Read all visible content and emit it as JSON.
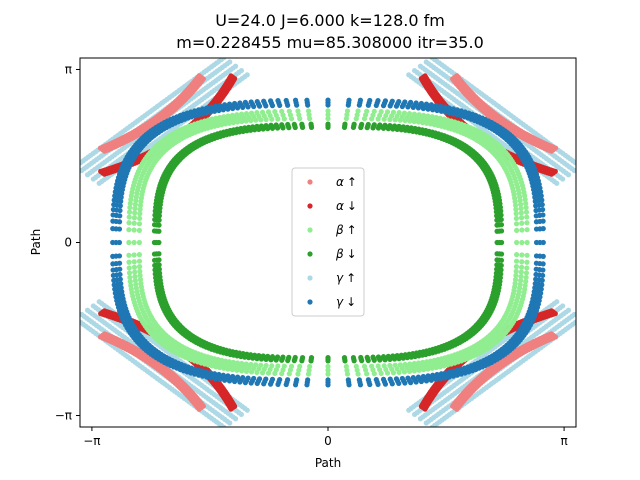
{
  "chart_data": {
    "type": "scatter",
    "title_line1": "U=24.0 J=6.000 k=128.0  fm",
    "title_line2": "m=0.228455 mu=85.308000 itr=35.0",
    "xlabel": "Path",
    "ylabel": "Path",
    "xlim": [
      -3.3,
      3.3
    ],
    "ylim": [
      -3.35,
      3.35
    ],
    "xticks": [
      {
        "value": -3.14159,
        "label": "−π"
      },
      {
        "value": 0,
        "label": "0"
      },
      {
        "value": 3.14159,
        "label": "π"
      }
    ],
    "yticks": [
      {
        "value": -3.14159,
        "label": "−π"
      },
      {
        "value": 0,
        "label": "0"
      },
      {
        "value": 3.14159,
        "label": "π"
      }
    ],
    "legend_position": "center",
    "series": [
      {
        "name": "α↑",
        "label_greek": "α",
        "label_arrow": "↑",
        "color": "#f08080",
        "shape": "hyperbola",
        "params": {
          "ax": 2.3,
          "ay": 2.2,
          "tip": 2.04,
          "outer": 3.0,
          "width": 0.08
        }
      },
      {
        "name": "α↓",
        "label_greek": "α",
        "label_arrow": "↓",
        "color": "#d62728",
        "shape": "hyperbola",
        "params": {
          "ax": 2.0,
          "ay": 1.9,
          "tip": 1.85,
          "outer": 3.0,
          "width": 0.07
        }
      },
      {
        "name": "β↑",
        "label_greek": "β",
        "label_arrow": "↑",
        "color": "#90ee90",
        "shape": "superellipse",
        "params": {
          "rx": 2.58,
          "ry": 2.32,
          "n": 3.2,
          "width": 0.14
        }
      },
      {
        "name": "β↓",
        "label_greek": "β",
        "label_arrow": "↓",
        "color": "#2ca02c",
        "shape": "superellipse",
        "params": {
          "rx": 2.28,
          "ry": 2.12,
          "n": 3.2,
          "width": 0.06
        }
      },
      {
        "name": "γ↑",
        "label_greek": "γ",
        "label_arrow": "↑",
        "color": "#add8e6",
        "shape": "diagonal",
        "params": {
          "start": 1.23,
          "end": 3.2,
          "offset": 1.7,
          "width": 0.22
        }
      },
      {
        "name": "γ↓",
        "label_greek": "γ",
        "label_arrow": "↓",
        "color": "#1f77b4",
        "shape": "superellipse",
        "params": {
          "rx": 2.82,
          "ry": 2.54,
          "n": 3.2,
          "width": 0.09
        }
      }
    ]
  }
}
